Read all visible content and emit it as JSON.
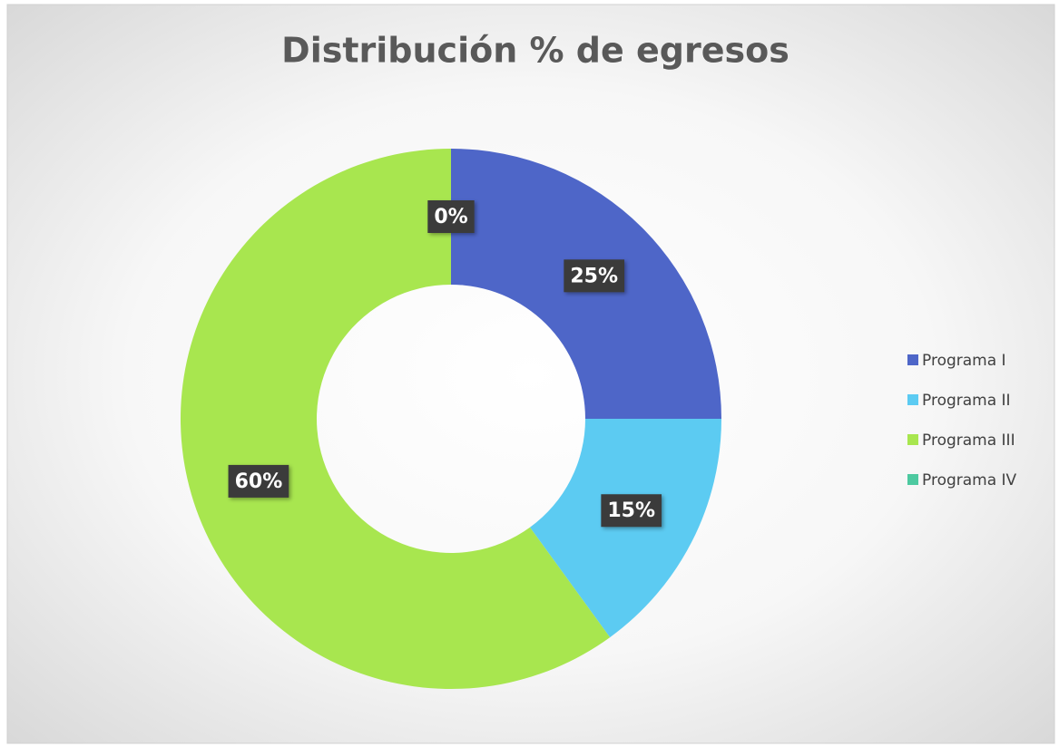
{
  "chart_data": {
    "type": "pie",
    "title": "Distribución % de egresos",
    "categories": [
      "Programa I",
      "Programa II",
      "Programa III",
      "Programa IV"
    ],
    "values": [
      25,
      15,
      60,
      0
    ],
    "value_labels": [
      "25%",
      "15%",
      "60%",
      "0%"
    ],
    "colors": [
      "#4e66c8",
      "#5ccbf2",
      "#a8e64f",
      "#4dc9a0"
    ],
    "donut": true,
    "legend": "right"
  }
}
